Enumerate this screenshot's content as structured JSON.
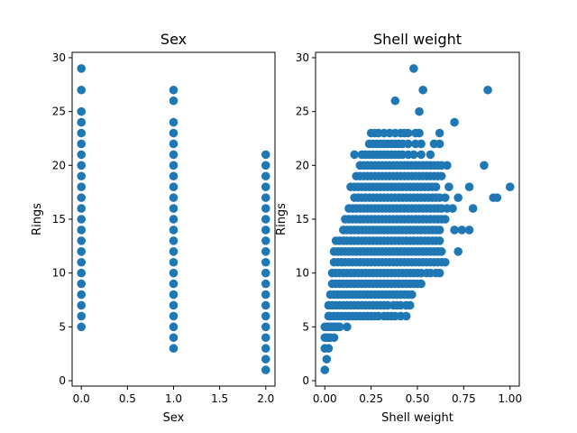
{
  "figure": {
    "background": "#ffffff",
    "marker_color": "#1f77b4"
  },
  "chart_data": [
    {
      "type": "scatter",
      "title": "Sex",
      "xlabel": "Sex",
      "ylabel": "Rings",
      "xlim": [
        -0.1,
        2.1
      ],
      "ylim": [
        -0.5,
        30.5
      ],
      "xticks": [
        0.0,
        0.5,
        1.0,
        1.5,
        2.0
      ],
      "xtick_labels": [
        "0.0",
        "0.5",
        "1.0",
        "1.5",
        "2.0"
      ],
      "yticks": [
        0,
        5,
        10,
        15,
        20,
        25,
        30
      ],
      "ytick_labels": [
        "0",
        "5",
        "10",
        "15",
        "20",
        "25",
        "30"
      ],
      "grid": false,
      "series": [
        {
          "color": "#1f77b4",
          "groups": [
            {
              "x": 0,
              "y": [
                5,
                6,
                7,
                8,
                9,
                10,
                11,
                12,
                13,
                14,
                15,
                16,
                17,
                18,
                19,
                20,
                21,
                22,
                23,
                24,
                25,
                27,
                29
              ]
            },
            {
              "x": 1,
              "y": [
                3,
                4,
                5,
                6,
                7,
                8,
                9,
                10,
                11,
                12,
                13,
                14,
                15,
                16,
                17,
                18,
                19,
                20,
                21,
                22,
                23,
                24,
                26,
                27
              ]
            },
            {
              "x": 2,
              "y": [
                1,
                2,
                3,
                4,
                5,
                6,
                7,
                8,
                9,
                10,
                11,
                12,
                13,
                14,
                15,
                16,
                17,
                18,
                19,
                20,
                21
              ]
            }
          ]
        }
      ]
    },
    {
      "type": "scatter",
      "title": "Shell weight",
      "xlabel": "Shell weight",
      "ylabel": "Rings",
      "xlim": [
        -0.05,
        1.05
      ],
      "ylim": [
        -0.5,
        30.5
      ],
      "xticks": [
        0.0,
        0.25,
        0.5,
        0.75,
        1.0
      ],
      "xtick_labels": [
        "0.00",
        "0.25",
        "0.50",
        "0.75",
        "1.00"
      ],
      "yticks": [
        0,
        5,
        10,
        15,
        20,
        25,
        30
      ],
      "ytick_labels": [
        "0",
        "5",
        "10",
        "15",
        "20",
        "25",
        "30"
      ],
      "grid": false,
      "series": [
        {
          "color": "#1f77b4",
          "rows": [
            {
              "y": 1,
              "x": [
                0.0
              ]
            },
            {
              "y": 2,
              "x": [
                0.01
              ]
            },
            {
              "y": 3,
              "x": [
                0.0,
                0.02
              ]
            },
            {
              "y": 4,
              "x": [
                0.0,
                0.01,
                0.02,
                0.03,
                0.05
              ]
            },
            {
              "y": 5,
              "x": [
                0.0,
                0.01,
                0.02,
                0.03,
                0.04,
                0.05,
                0.06,
                0.07,
                0.08,
                0.12
              ]
            },
            {
              "y": 6,
              "x": [
                0.02,
                0.03,
                0.05,
                0.07,
                0.09,
                0.11,
                0.13,
                0.15,
                0.17,
                0.19,
                0.21,
                0.23,
                0.25,
                0.27,
                0.29,
                0.32,
                0.34,
                0.36,
                0.38,
                0.41,
                0.44
              ]
            },
            {
              "y": 7,
              "x": [
                0.02,
                0.04,
                0.06,
                0.08,
                0.1,
                0.12,
                0.14,
                0.16,
                0.18,
                0.2,
                0.22,
                0.24,
                0.26,
                0.28,
                0.3,
                0.32,
                0.34,
                0.37,
                0.39,
                0.41,
                0.44,
                0.46
              ]
            },
            {
              "y": 8,
              "x": [
                0.03,
                0.05,
                0.07,
                0.09,
                0.11,
                0.13,
                0.15,
                0.17,
                0.19,
                0.21,
                0.23,
                0.25,
                0.27,
                0.29,
                0.31,
                0.33,
                0.35,
                0.37,
                0.39,
                0.41,
                0.43,
                0.45,
                0.47
              ]
            },
            {
              "y": 9,
              "x": [
                0.04,
                0.06,
                0.08,
                0.1,
                0.12,
                0.14,
                0.16,
                0.18,
                0.2,
                0.22,
                0.24,
                0.26,
                0.28,
                0.3,
                0.32,
                0.34,
                0.36,
                0.38,
                0.4,
                0.42,
                0.44,
                0.46,
                0.48,
                0.5,
                0.52
              ]
            },
            {
              "y": 10,
              "x": [
                0.04,
                0.06,
                0.08,
                0.1,
                0.12,
                0.14,
                0.16,
                0.18,
                0.2,
                0.22,
                0.24,
                0.26,
                0.28,
                0.3,
                0.32,
                0.34,
                0.36,
                0.38,
                0.4,
                0.42,
                0.44,
                0.46,
                0.48,
                0.5,
                0.52,
                0.55,
                0.57,
                0.6,
                0.62
              ]
            },
            {
              "y": 11,
              "x": [
                0.05,
                0.07,
                0.09,
                0.11,
                0.13,
                0.15,
                0.17,
                0.19,
                0.21,
                0.23,
                0.25,
                0.27,
                0.29,
                0.31,
                0.33,
                0.35,
                0.37,
                0.39,
                0.41,
                0.43,
                0.45,
                0.47,
                0.49,
                0.51,
                0.53,
                0.55,
                0.57,
                0.59,
                0.61,
                0.63,
                0.65
              ]
            },
            {
              "y": 12,
              "x": [
                0.05,
                0.07,
                0.09,
                0.11,
                0.13,
                0.15,
                0.17,
                0.19,
                0.21,
                0.23,
                0.25,
                0.27,
                0.29,
                0.31,
                0.33,
                0.35,
                0.37,
                0.39,
                0.41,
                0.43,
                0.45,
                0.47,
                0.49,
                0.51,
                0.53,
                0.55,
                0.57,
                0.59,
                0.61,
                0.63,
                0.72
              ]
            },
            {
              "y": 13,
              "x": [
                0.06,
                0.08,
                0.1,
                0.12,
                0.14,
                0.16,
                0.18,
                0.2,
                0.22,
                0.24,
                0.26,
                0.28,
                0.3,
                0.32,
                0.34,
                0.36,
                0.38,
                0.4,
                0.42,
                0.44,
                0.46,
                0.48,
                0.5,
                0.52,
                0.54,
                0.56,
                0.58,
                0.6,
                0.62
              ]
            },
            {
              "y": 14,
              "x": [
                0.1,
                0.12,
                0.14,
                0.16,
                0.18,
                0.2,
                0.22,
                0.24,
                0.26,
                0.28,
                0.3,
                0.32,
                0.34,
                0.36,
                0.38,
                0.4,
                0.42,
                0.44,
                0.46,
                0.48,
                0.5,
                0.52,
                0.54,
                0.56,
                0.58,
                0.6,
                0.62,
                0.7,
                0.74,
                0.78
              ]
            },
            {
              "y": 15,
              "x": [
                0.11,
                0.13,
                0.15,
                0.17,
                0.19,
                0.21,
                0.23,
                0.25,
                0.27,
                0.29,
                0.31,
                0.33,
                0.35,
                0.37,
                0.39,
                0.41,
                0.43,
                0.45,
                0.47,
                0.49,
                0.51,
                0.53,
                0.55,
                0.57,
                0.59,
                0.61,
                0.63,
                0.65
              ]
            },
            {
              "y": 16,
              "x": [
                0.13,
                0.15,
                0.17,
                0.19,
                0.21,
                0.23,
                0.25,
                0.27,
                0.29,
                0.31,
                0.33,
                0.35,
                0.37,
                0.39,
                0.41,
                0.43,
                0.45,
                0.47,
                0.49,
                0.51,
                0.53,
                0.55,
                0.57,
                0.59,
                0.61,
                0.63,
                0.66,
                0.69,
                0.8
              ]
            },
            {
              "y": 17,
              "x": [
                0.16,
                0.18,
                0.2,
                0.22,
                0.24,
                0.26,
                0.28,
                0.3,
                0.32,
                0.34,
                0.36,
                0.38,
                0.4,
                0.42,
                0.44,
                0.46,
                0.48,
                0.5,
                0.52,
                0.54,
                0.56,
                0.58,
                0.6,
                0.62,
                0.65,
                0.72,
                0.91,
                0.93
              ]
            },
            {
              "y": 18,
              "x": [
                0.14,
                0.16,
                0.18,
                0.2,
                0.22,
                0.24,
                0.26,
                0.28,
                0.3,
                0.32,
                0.34,
                0.36,
                0.38,
                0.4,
                0.42,
                0.44,
                0.46,
                0.48,
                0.5,
                0.52,
                0.54,
                0.56,
                0.58,
                0.6,
                0.67,
                0.78,
                1.0
              ]
            },
            {
              "y": 19,
              "x": [
                0.17,
                0.19,
                0.21,
                0.23,
                0.25,
                0.27,
                0.29,
                0.31,
                0.33,
                0.35,
                0.37,
                0.39,
                0.41,
                0.43,
                0.45,
                0.47,
                0.49,
                0.51,
                0.53,
                0.55,
                0.57,
                0.59,
                0.61,
                0.63
              ]
            },
            {
              "y": 20,
              "x": [
                0.19,
                0.21,
                0.23,
                0.25,
                0.27,
                0.29,
                0.31,
                0.33,
                0.35,
                0.37,
                0.39,
                0.41,
                0.43,
                0.45,
                0.47,
                0.49,
                0.51,
                0.53,
                0.55,
                0.57,
                0.59,
                0.61,
                0.63,
                0.66,
                0.86
              ]
            },
            {
              "y": 21,
              "x": [
                0.16,
                0.2,
                0.22,
                0.24,
                0.26,
                0.28,
                0.3,
                0.32,
                0.34,
                0.36,
                0.38,
                0.4,
                0.42,
                0.45,
                0.48,
                0.52,
                0.57
              ]
            },
            {
              "y": 22,
              "x": [
                0.24,
                0.26,
                0.28,
                0.3,
                0.32,
                0.34,
                0.36,
                0.38,
                0.4,
                0.42,
                0.45,
                0.49,
                0.52,
                0.59,
                0.62
              ]
            },
            {
              "y": 23,
              "x": [
                0.25,
                0.27,
                0.29,
                0.32,
                0.35,
                0.38,
                0.41,
                0.43,
                0.45,
                0.49,
                0.51,
                0.62
              ]
            },
            {
              "y": 24,
              "x": [
                0.7
              ]
            },
            {
              "y": 25,
              "x": [
                0.51
              ]
            },
            {
              "y": 26,
              "x": [
                0.38
              ]
            },
            {
              "y": 27,
              "x": [
                0.53,
                0.88
              ]
            },
            {
              "y": 29,
              "x": [
                0.48
              ]
            }
          ]
        }
      ]
    }
  ]
}
